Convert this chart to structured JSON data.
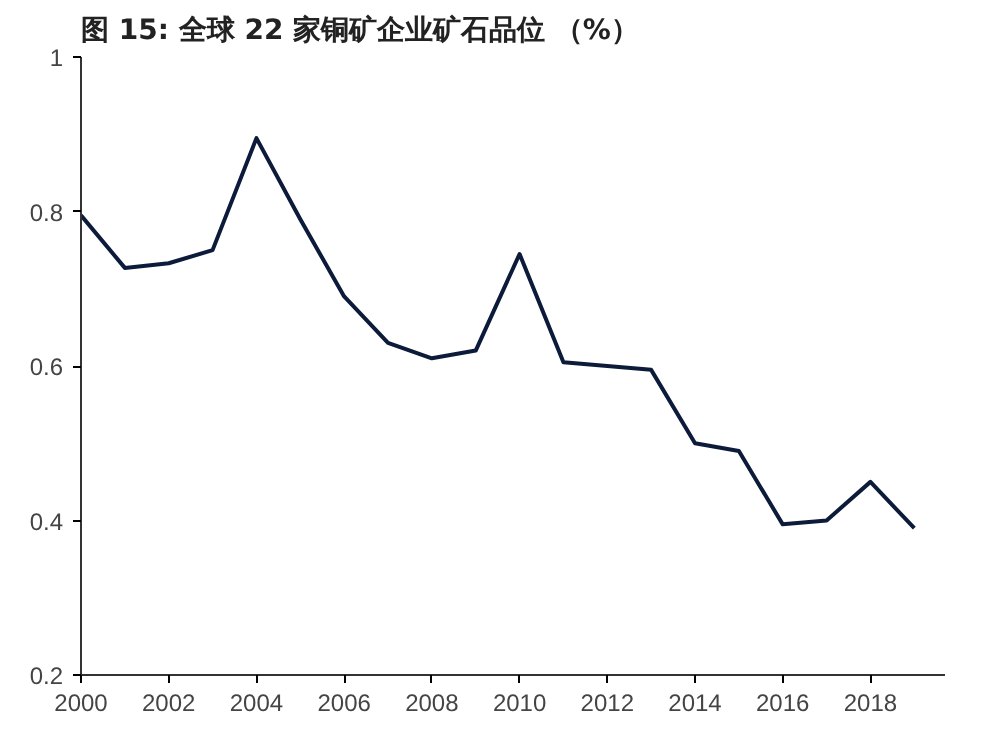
{
  "chart_data": {
    "type": "line",
    "title": "图 15: 全球 22 家铜矿企业矿石品位 （%）",
    "x": [
      2000,
      2001,
      2002,
      2003,
      2004,
      2005,
      2006,
      2007,
      2008,
      2009,
      2010,
      2011,
      2012,
      2013,
      2014,
      2015,
      2016,
      2017,
      2018,
      2019
    ],
    "series": [
      {
        "color": "#0d1b3a",
        "values": [
          0.795,
          0.727,
          0.733,
          0.75,
          0.895,
          0.79,
          0.69,
          0.63,
          0.61,
          0.62,
          0.745,
          0.605,
          0.6,
          0.595,
          0.5,
          0.49,
          0.395,
          0.4,
          0.45,
          0.39
        ]
      }
    ],
    "xlim": [
      2000,
      2019.7
    ],
    "xticks": [
      2000,
      2002,
      2004,
      2006,
      2008,
      2010,
      2012,
      2014,
      2016,
      2018
    ],
    "ylim": [
      0.2,
      1
    ],
    "yticks": [
      {
        "value": 0.2,
        "label": "0.2"
      },
      {
        "value": 0.4,
        "label": "0.4"
      },
      {
        "value": 0.6,
        "label": "0.6"
      },
      {
        "value": 0.8,
        "label": "0.8"
      },
      {
        "value": 1,
        "label": "1"
      }
    ],
    "grid": false,
    "marker": "none",
    "line_style": "solid"
  }
}
